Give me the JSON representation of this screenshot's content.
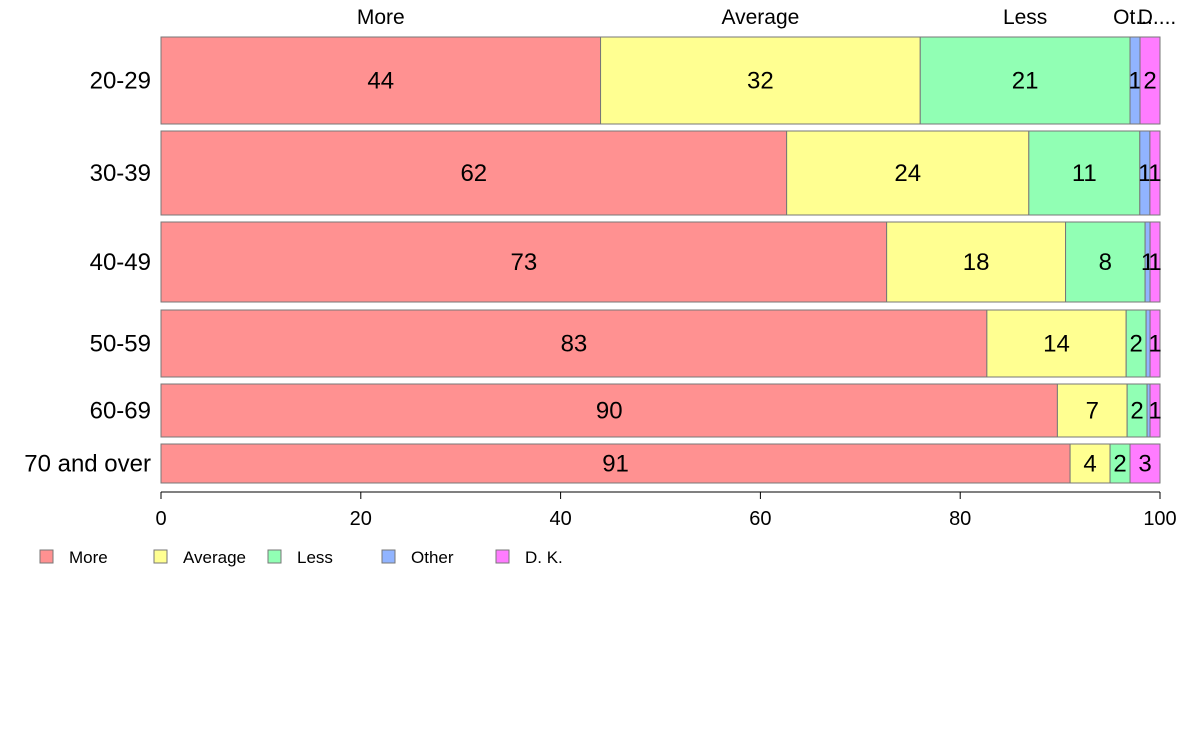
{
  "chart_data": {
    "type": "bar",
    "orientation": "horizontal",
    "stacked": true,
    "categories": [
      "20-29",
      "30-39",
      "40-49",
      "50-59",
      "60-69",
      "70 and over"
    ],
    "series": [
      {
        "name": "More",
        "color": "#FF9191",
        "values": [
          44,
          62,
          73,
          83,
          90,
          91
        ]
      },
      {
        "name": "Average",
        "color": "#FFFF91",
        "values": [
          32,
          24,
          18,
          14,
          7,
          4
        ]
      },
      {
        "name": "Less",
        "color": "#91FFB4",
        "values": [
          21,
          11,
          8,
          2,
          2,
          2
        ]
      },
      {
        "name": "Other",
        "color": "#91B4FF",
        "values": [
          1,
          1,
          0.5,
          0.4,
          0.3,
          0
        ]
      },
      {
        "name": "D. K.",
        "color": "#FF7CFF",
        "values": [
          2,
          1,
          1,
          1,
          1,
          3
        ]
      }
    ],
    "data_labels": [
      [
        "44",
        "32",
        "21",
        "1",
        "2"
      ],
      [
        "62",
        "24",
        "11",
        "1",
        "1"
      ],
      [
        "73",
        "18",
        "8",
        "1",
        "1"
      ],
      [
        "83",
        "14",
        "2",
        "",
        "1"
      ],
      [
        "90",
        "7",
        "2",
        "",
        "1"
      ],
      [
        "91",
        "4",
        "2",
        "",
        "3"
      ]
    ],
    "top_labels": [
      "More",
      "Average",
      "Less",
      "Ot...",
      "D...."
    ],
    "xlim": [
      0,
      100
    ],
    "xticks": [
      0,
      20,
      40,
      60,
      80,
      100
    ],
    "grid": false,
    "legend_position": "bottom-left"
  }
}
